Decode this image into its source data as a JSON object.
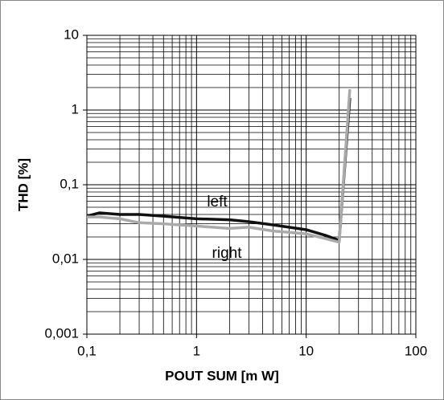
{
  "chart_data": {
    "type": "line",
    "xlabel": "POUT SUM [m W]",
    "ylabel": "THD [%]",
    "x": [
      0.1,
      0.13,
      0.2,
      0.3,
      0.5,
      1,
      2,
      3,
      5,
      10,
      15,
      20,
      25
    ],
    "series": [
      {
        "name": "left",
        "color": "#111111",
        "values": [
          0.038,
          0.042,
          0.04,
          0.04,
          0.038,
          0.035,
          0.034,
          0.032,
          0.029,
          0.025,
          0.021,
          0.018,
          1.45
        ]
      },
      {
        "name": "right",
        "color": "#aaaaaa",
        "values": [
          0.037,
          0.037,
          0.035,
          0.031,
          0.03,
          0.028,
          0.026,
          0.027,
          0.024,
          0.022,
          0.019,
          0.017,
          1.9
        ]
      }
    ],
    "xlim": [
      0.1,
      100
    ],
    "ylim": [
      0.001,
      10
    ],
    "xticks": [
      {
        "value": 0.1,
        "label": "0,1"
      },
      1,
      10,
      100
    ],
    "yticks": [
      {
        "value": 0.001,
        "label": "0,001"
      },
      {
        "value": 0.01,
        "label": "0,01"
      },
      {
        "value": 0.1,
        "label": "0,1"
      },
      1,
      10
    ],
    "xlog": true,
    "ylog": true,
    "grid": true,
    "minor_grid": true
  }
}
